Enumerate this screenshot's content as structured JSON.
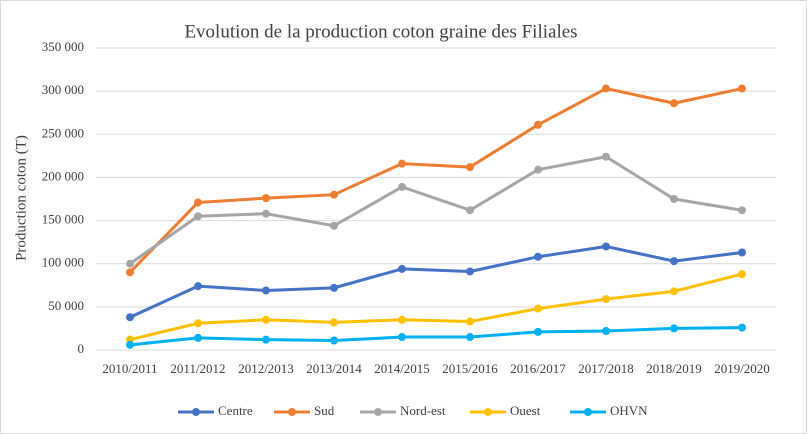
{
  "chart_data": {
    "type": "line",
    "title": "Evolution de la production coton graine des Filiales",
    "y_label": "Production coton (T)",
    "categories": [
      "2010/2011",
      "2011/2012",
      "2012/2013",
      "2013/2014",
      "2014/2015",
      "2015/2016",
      "2016/2017",
      "2017/2018",
      "2018/2019",
      "2019/2020"
    ],
    "series": [
      {
        "name": "Centre",
        "color": "#4472c4",
        "values": [
          38000,
          74000,
          69000,
          72000,
          94000,
          91000,
          108000,
          120000,
          103000,
          113000
        ]
      },
      {
        "name": "Sud",
        "color": "#ed7d31",
        "values": [
          90000,
          171000,
          176000,
          180000,
          216000,
          212000,
          261000,
          303000,
          286000,
          303000
        ]
      },
      {
        "name": "Nord-est",
        "color": "#a5a5a5",
        "values": [
          100000,
          155000,
          158000,
          144000,
          189000,
          162000,
          209000,
          224000,
          175000,
          162000
        ]
      },
      {
        "name": "Ouest",
        "color": "#ffc000",
        "values": [
          12000,
          31000,
          35000,
          32000,
          35000,
          33000,
          48000,
          59000,
          68000,
          88000
        ]
      },
      {
        "name": "OHVN",
        "color": "#00b0f0",
        "values": [
          6000,
          14000,
          12000,
          11000,
          15000,
          15000,
          21000,
          22000,
          25000,
          26000
        ]
      }
    ],
    "ylim": [
      0,
      350000
    ],
    "yticks": [
      0,
      {
        "value": 50000,
        "label": "50 000"
      },
      {
        "value": 100000,
        "label": "100 000"
      },
      {
        "value": 150000,
        "label": "150 000"
      },
      {
        "value": 200000,
        "label": "200 000"
      },
      {
        "value": 250000,
        "label": "250 000"
      },
      {
        "value": 300000,
        "label": "300 000"
      },
      {
        "value": 350000,
        "label": "350 000"
      }
    ],
    "grid": true,
    "legend": "bottom"
  }
}
